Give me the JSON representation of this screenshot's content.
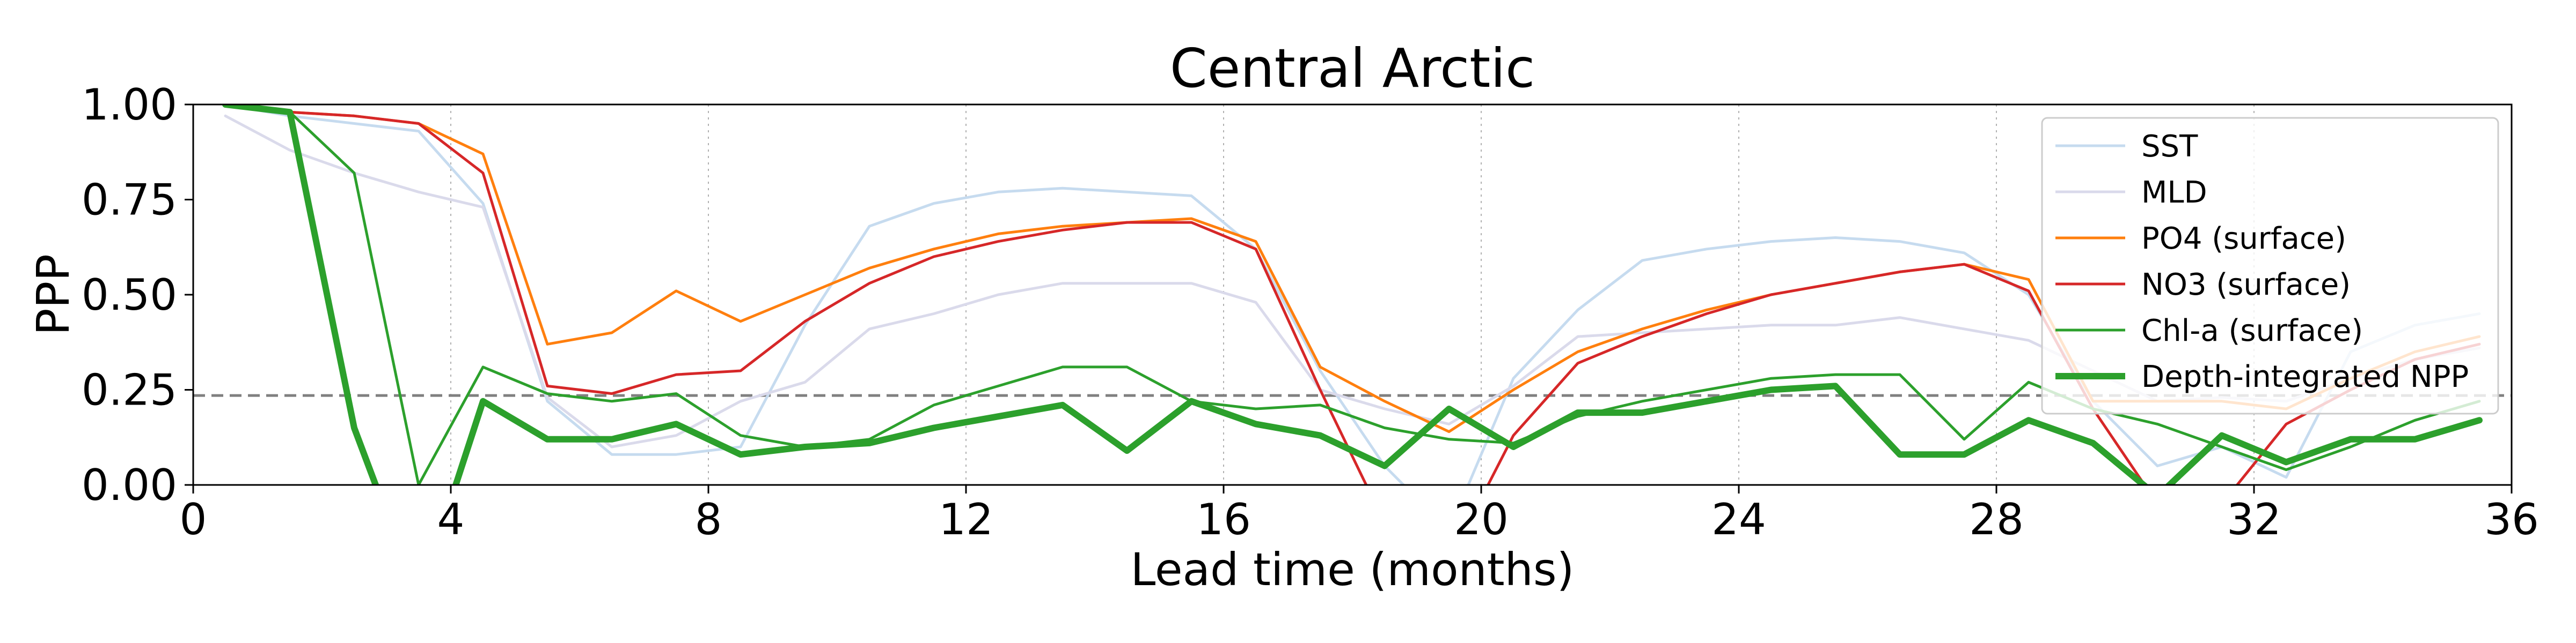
{
  "chart_data": {
    "type": "line",
    "title": "Central Arctic",
    "xlabel": "Lead time (months)",
    "ylabel": "PPP",
    "xlim": [
      0,
      36
    ],
    "ylim": [
      0,
      1
    ],
    "xticks": [
      0,
      4,
      8,
      12,
      16,
      20,
      24,
      28,
      32,
      36
    ],
    "xtick_labels": [
      "0",
      "4",
      "8",
      "12",
      "16",
      "20",
      "24",
      "28",
      "32",
      "36"
    ],
    "yticks": [
      0,
      0.25,
      0.5,
      0.75,
      1
    ],
    "ytick_labels": [
      "0.00",
      "0.25",
      "0.50",
      "0.75",
      "1.00"
    ],
    "x_grid": true,
    "y_grid": false,
    "legend_position": "right",
    "threshold": 0.235,
    "x": [
      0.5,
      1.5,
      2.5,
      3.5,
      4.5,
      5.5,
      6.5,
      7.5,
      8.5,
      9.5,
      10.5,
      11.5,
      12.5,
      13.5,
      14.5,
      15.5,
      16.5,
      17.5,
      18.5,
      19.5,
      20.5,
      21.5,
      22.5,
      23.5,
      24.5,
      25.5,
      26.5,
      27.5,
      28.5,
      29.5,
      30.5,
      31.5,
      32.5,
      33.5,
      34.5,
      35.5
    ],
    "series": [
      {
        "name": "SST",
        "color": "#c6dbef",
        "width": 5,
        "values": [
          1.0,
          0.97,
          0.95,
          0.93,
          0.74,
          0.22,
          0.08,
          0.08,
          0.1,
          0.42,
          0.68,
          0.74,
          0.77,
          0.78,
          0.77,
          0.76,
          0.62,
          0.3,
          0.05,
          -0.12,
          0.28,
          0.46,
          0.59,
          0.62,
          0.64,
          0.65,
          0.64,
          0.61,
          0.5,
          0.22,
          0.05,
          0.1,
          0.02,
          0.35,
          0.42,
          0.45
        ]
      },
      {
        "name": "MLD",
        "color": "#dadaeb",
        "width": 5,
        "values": [
          0.97,
          0.88,
          0.82,
          0.77,
          0.73,
          0.23,
          0.1,
          0.13,
          0.22,
          0.27,
          0.41,
          0.45,
          0.5,
          0.53,
          0.53,
          0.53,
          0.48,
          0.25,
          0.2,
          0.16,
          0.26,
          0.39,
          0.4,
          0.41,
          0.42,
          0.42,
          0.44,
          0.41,
          0.38,
          0.3,
          0.22,
          0.23,
          0.22,
          0.28,
          0.33,
          0.36
        ]
      },
      {
        "name": "PO4 (surface)",
        "color": "#ff7f0e",
        "width": 5,
        "values": [
          1.0,
          0.98,
          0.97,
          0.95,
          0.87,
          0.37,
          0.4,
          0.51,
          0.43,
          0.5,
          0.57,
          0.62,
          0.66,
          0.68,
          0.69,
          0.7,
          0.64,
          0.31,
          0.22,
          0.14,
          0.25,
          0.35,
          0.41,
          0.46,
          0.5,
          0.53,
          0.56,
          0.58,
          0.54,
          0.22,
          0.22,
          0.22,
          0.2,
          0.28,
          0.35,
          0.39
        ]
      },
      {
        "name": "NO3 (surface)",
        "color": "#d62728",
        "width": 5,
        "values": [
          1.0,
          0.98,
          0.97,
          0.95,
          0.82,
          0.26,
          0.24,
          0.29,
          0.3,
          0.43,
          0.53,
          0.6,
          0.64,
          0.67,
          0.69,
          0.69,
          0.62,
          0.25,
          -0.1,
          -0.2,
          0.13,
          0.32,
          0.39,
          0.45,
          0.5,
          0.53,
          0.56,
          0.58,
          0.51,
          0.2,
          -0.05,
          -0.05,
          0.16,
          0.25,
          0.33,
          0.37
        ]
      },
      {
        "name": "Chl-a (surface)",
        "color": "#2ca02c",
        "width": 5,
        "values": [
          1.0,
          0.98,
          0.82,
          0.0,
          0.31,
          0.24,
          0.22,
          0.24,
          0.13,
          0.1,
          0.12,
          0.21,
          0.26,
          0.31,
          0.31,
          0.22,
          0.2,
          0.21,
          0.15,
          0.12,
          0.11,
          0.18,
          0.22,
          0.25,
          0.28,
          0.29,
          0.29,
          0.12,
          0.27,
          0.2,
          0.16,
          0.1,
          0.04,
          0.1,
          0.17,
          0.22
        ]
      },
      {
        "name": "Depth-integrated NPP",
        "color": "#2ca02c",
        "width": 12,
        "values": [
          1.0,
          0.98,
          0.15,
          -0.3,
          0.22,
          0.12,
          0.12,
          0.16,
          0.08,
          0.1,
          0.11,
          0.15,
          0.18,
          0.21,
          0.09,
          0.22,
          0.16,
          0.13,
          0.05,
          0.2,
          0.1,
          0.19,
          0.19,
          0.22,
          0.25,
          0.26,
          0.08,
          0.08,
          0.17,
          0.11,
          -0.03,
          0.13,
          0.06,
          0.12,
          0.12,
          0.17
        ]
      }
    ]
  }
}
